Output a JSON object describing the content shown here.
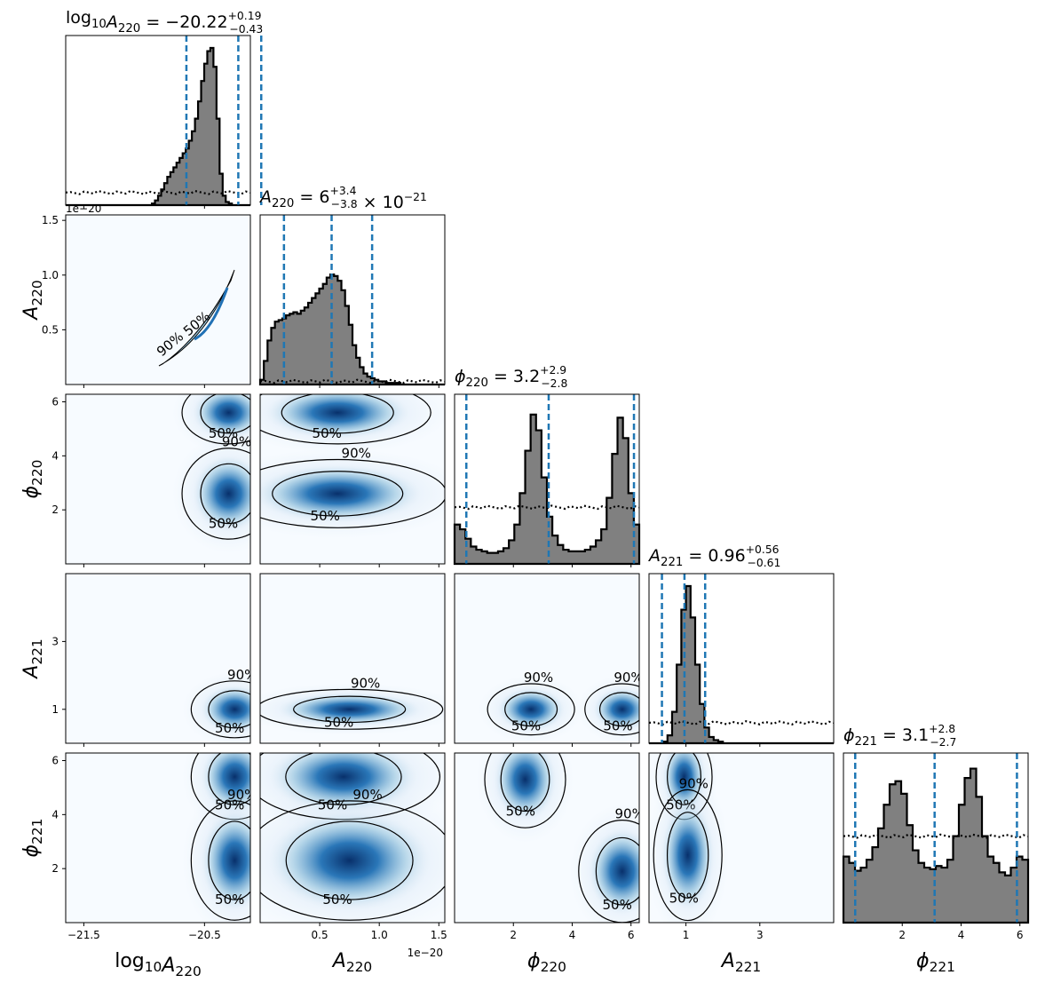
{
  "colors": {
    "hist_fill": "#808080",
    "hist_edge": "#000000",
    "quantile_line": "#1f77b4",
    "density_low": "#f7fbff",
    "density_high": "#08306b",
    "contour": "#000000",
    "prior": "#000000"
  },
  "chart_data": {
    "type": "corner",
    "parameters": [
      {
        "key": "log10A220",
        "axis_label": "log10A220",
        "label_parts": {
          "main": "log",
          "sub1": "10",
          "var": "A",
          "sub2": "220"
        },
        "title": {
          "lhs": "A",
          "lhs_sub": "220",
          "prefix": "log",
          "prefix_sub": "10",
          "value": "−20.22",
          "plus": "+0.19",
          "minus": "−0.43",
          "suffix": ""
        },
        "range": [
          -21.65,
          -20.12
        ],
        "ticks": [
          -21.5,
          -20.5
        ],
        "tick_labels": [
          "−21.5",
          "−20.5"
        ],
        "median": -20.22,
        "quantiles": [
          -20.65,
          -20.22,
          -20.03
        ],
        "offset_label": ""
      },
      {
        "key": "A220",
        "axis_label": "A220",
        "label_parts": {
          "var": "A",
          "sub2": "220"
        },
        "title": {
          "lhs": "A",
          "lhs_sub": "220",
          "value": "6",
          "plus": "+3.4",
          "minus": "−3.8",
          "suffix": "× 10",
          "suffix_exp": "−21"
        },
        "range": [
          0.0,
          1.55
        ],
        "ticks": [
          0.5,
          1.0,
          1.5
        ],
        "tick_labels": [
          "0.5",
          "1.0",
          "1.5"
        ],
        "median": 0.6,
        "quantiles": [
          0.2,
          0.6,
          0.94
        ],
        "offset_label": "1e−20"
      },
      {
        "key": "phi220",
        "axis_label": "phi220",
        "label_parts": {
          "var": "ϕ",
          "sub2": "220"
        },
        "title": {
          "lhs": "ϕ",
          "lhs_sub": "220",
          "value": "3.2",
          "plus": "+2.9",
          "minus": "−2.8",
          "suffix": ""
        },
        "range": [
          0.0,
          6.28
        ],
        "ticks": [
          2,
          4,
          6
        ],
        "tick_labels": [
          "2",
          "4",
          "6"
        ],
        "median": 3.2,
        "quantiles": [
          0.4,
          3.2,
          6.1
        ],
        "offset_label": ""
      },
      {
        "key": "A221",
        "axis_label": "A221",
        "label_parts": {
          "var": "A",
          "sub2": "221"
        },
        "title": {
          "lhs": "A",
          "lhs_sub": "221",
          "value": "0.96",
          "plus": "+0.56",
          "minus": "−0.61",
          "suffix": ""
        },
        "range": [
          0.0,
          5.0
        ],
        "ticks": [
          1,
          3
        ],
        "tick_labels": [
          "1",
          "3"
        ],
        "median": 0.96,
        "quantiles": [
          0.35,
          0.96,
          1.52
        ],
        "offset_label": ""
      },
      {
        "key": "phi221",
        "axis_label": "phi221",
        "label_parts": {
          "var": "ϕ",
          "sub2": "221"
        },
        "title": {
          "lhs": "ϕ",
          "lhs_sub": "221",
          "value": "3.1",
          "plus": "+2.8",
          "minus": "−2.7",
          "suffix": ""
        },
        "range": [
          0.0,
          6.28
        ],
        "ticks": [
          2,
          4,
          6
        ],
        "tick_labels": [
          "2",
          "4",
          "6"
        ],
        "median": 3.1,
        "quantiles": [
          0.4,
          3.1,
          5.9
        ],
        "offset_label": ""
      }
    ],
    "y_ticks": {
      "A220": {
        "ticks": [
          0.5,
          1.0,
          1.5
        ],
        "labels": [
          "0.5",
          "1.0",
          "1.5"
        ],
        "offset_label": "1e−20"
      },
      "phi220": {
        "ticks": [
          2,
          4,
          6
        ],
        "labels": [
          "2",
          "4",
          "6"
        ]
      },
      "A221": {
        "ticks": [
          1,
          3
        ],
        "labels": [
          "1",
          "3"
        ]
      },
      "phi221": {
        "ticks": [
          2,
          4,
          6
        ],
        "labels": [
          "2",
          "4",
          "6"
        ]
      }
    },
    "contour_levels": [
      "50%",
      "90%"
    ],
    "histograms": {
      "log10A220": [
        0,
        0,
        0,
        0,
        0,
        0,
        0,
        0,
        0,
        0,
        0,
        0,
        0,
        0,
        0,
        0,
        0,
        0,
        0,
        0,
        0,
        0,
        0,
        0,
        0,
        0,
        0,
        0,
        0.01,
        0.03,
        0.06,
        0.1,
        0.14,
        0.18,
        0.21,
        0.24,
        0.27,
        0.3,
        0.33,
        0.36,
        0.41,
        0.47,
        0.55,
        0.66,
        0.79,
        0.9,
        0.98,
        1.0,
        0.88,
        0.55,
        0.2,
        0.06,
        0.02,
        0.01,
        0,
        0,
        0,
        0,
        0,
        0
      ],
      "A220": [
        0.03,
        0.15,
        0.28,
        0.36,
        0.4,
        0.41,
        0.42,
        0.44,
        0.45,
        0.46,
        0.45,
        0.47,
        0.49,
        0.52,
        0.55,
        0.58,
        0.61,
        0.64,
        0.68,
        0.7,
        0.69,
        0.66,
        0.6,
        0.5,
        0.38,
        0.25,
        0.17,
        0.11,
        0.07,
        0.05,
        0.04,
        0.03,
        0.02,
        0.02,
        0.01,
        0.01,
        0.01,
        0.01,
        0,
        0,
        0,
        0,
        0,
        0,
        0,
        0,
        0,
        0,
        0,
        0
      ],
      "phi220": [
        0.25,
        0.22,
        0.16,
        0.11,
        0.09,
        0.08,
        0.07,
        0.07,
        0.08,
        0.1,
        0.15,
        0.25,
        0.45,
        0.72,
        0.95,
        0.85,
        0.55,
        0.3,
        0.18,
        0.12,
        0.09,
        0.08,
        0.08,
        0.08,
        0.09,
        0.11,
        0.15,
        0.22,
        0.42,
        0.7,
        0.93,
        0.8,
        0.45,
        0.25
      ],
      "A221": [
        0,
        0,
        0,
        0.01,
        0.05,
        0.2,
        0.5,
        0.85,
        1.0,
        0.8,
        0.5,
        0.25,
        0.1,
        0.04,
        0.02,
        0.01,
        0,
        0,
        0,
        0,
        0,
        0,
        0,
        0,
        0,
        0,
        0,
        0,
        0,
        0,
        0,
        0,
        0,
        0,
        0,
        0,
        0,
        0,
        0,
        0
      ],
      "phi221": [
        0.42,
        0.38,
        0.33,
        0.35,
        0.4,
        0.48,
        0.6,
        0.75,
        0.88,
        0.9,
        0.82,
        0.62,
        0.46,
        0.38,
        0.35,
        0.34,
        0.36,
        0.35,
        0.4,
        0.55,
        0.75,
        0.92,
        0.98,
        0.8,
        0.55,
        0.42,
        0.38,
        0.32,
        0.3,
        0.35,
        0.42,
        0.4
      ]
    },
    "priors": {
      "log10A220": 0.08,
      "A220": 0.02,
      "phi220": 0.36,
      "A221": 0.13,
      "phi221": 0.55
    }
  }
}
